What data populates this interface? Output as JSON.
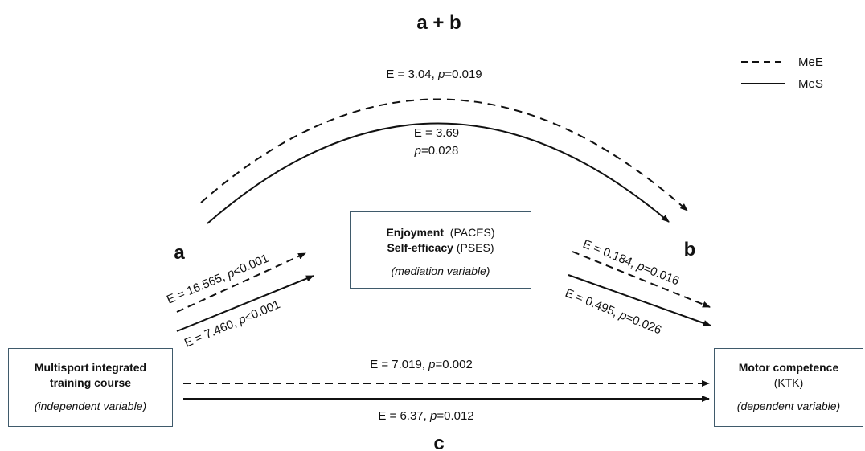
{
  "diagram": {
    "paths": {
      "total": "a + b",
      "a": "a",
      "b": "b",
      "c": "c"
    },
    "legend": {
      "dashed": "MeE",
      "solid": "MeS"
    },
    "boxes": {
      "independent": {
        "line1": "Multisport integrated",
        "line2": "training course",
        "note": "(independent variable)"
      },
      "mediator": {
        "line1_bold": "Enjoyment",
        "line1_rest": "(PACES)",
        "line2_bold": "Self-efficacy",
        "line2_rest": "(PSES)",
        "note": "(mediation variable)"
      },
      "dependent": {
        "line1": "Motor competence",
        "line2": "(KTK)",
        "note": "(dependent variable)"
      }
    },
    "effects": {
      "ab_MeE": {
        "e": "E = 3.04, ",
        "p": "p",
        "rest": "=0.019"
      },
      "ab_MeS": {
        "e": "E = 3.69",
        "p": "p",
        "rest": "=0.028"
      },
      "a_MeE": {
        "e": "E = 16.565, ",
        "p": "p",
        "rest": "<0.001"
      },
      "a_MeS": {
        "e": "E = 7.460, ",
        "p": "p",
        "rest": "<0.001"
      },
      "b_MeE": {
        "e": "E = 0.184, ",
        "p": "p",
        "rest": "=0.016"
      },
      "b_MeS": {
        "e": "E = 0.495, ",
        "p": "p",
        "rest": "=0.026"
      },
      "c_MeE": {
        "e": "E = 7.019, ",
        "p": "p",
        "rest": "=0.002"
      },
      "c_MeS": {
        "e": "E = 6.37, ",
        "p": "p",
        "rest": "=0.012"
      }
    }
  }
}
